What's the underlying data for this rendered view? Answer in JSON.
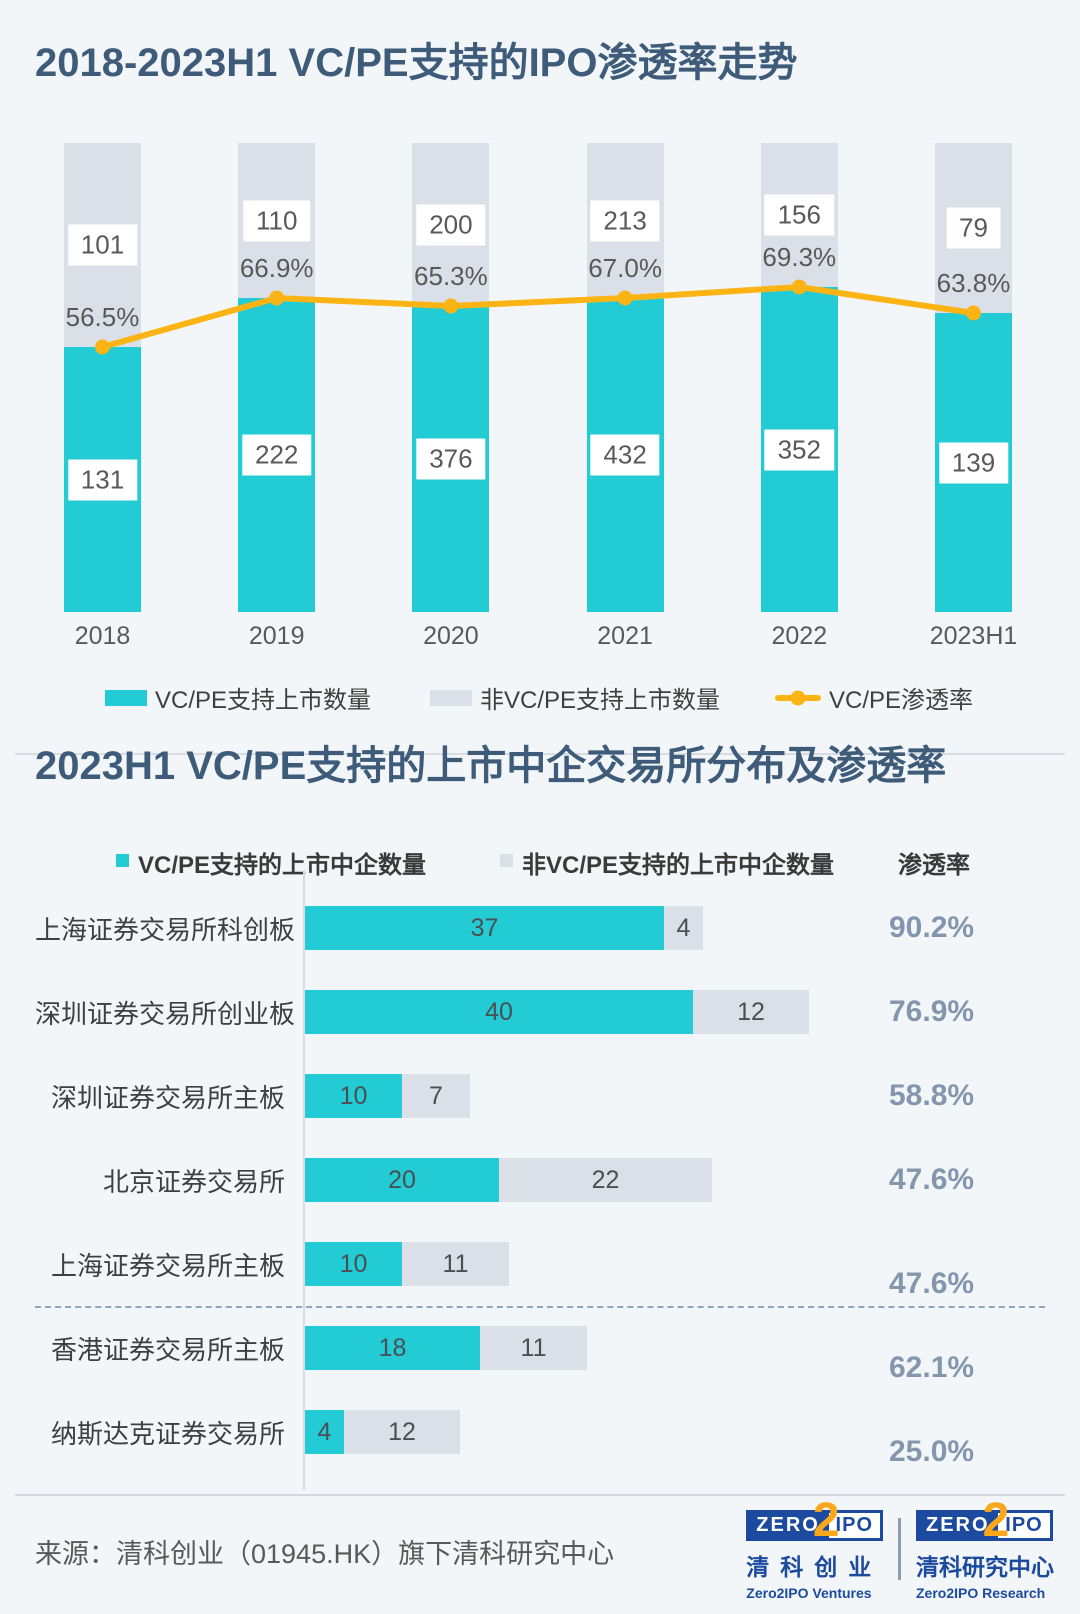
{
  "colors": {
    "background": "#f2f6f9",
    "teal": "#23cbd4",
    "gray_bar": "#dbdfe7",
    "line_yellow": "#fcb414",
    "title": "#3e5c7a",
    "rate_text": "#8496ad",
    "logo_blue": "#1b4a9e",
    "logo_yellow": "#f9a81b"
  },
  "chart_data": [
    {
      "type": "bar",
      "subtype": "stacked-100pct-columns-with-line",
      "title": "2018-2023H1 VC/PE支持的IPO渗透率走势",
      "categories": [
        "2018",
        "2019",
        "2020",
        "2021",
        "2022",
        "2023H1"
      ],
      "series": [
        {
          "name": "VC/PE支持上市数量",
          "type": "bar",
          "color": "#23cbd4",
          "values": [
            131,
            222,
            376,
            432,
            352,
            139
          ]
        },
        {
          "name": "非VC/PE支持上市数量",
          "type": "bar",
          "color": "#dbdfe7",
          "values": [
            101,
            110,
            200,
            213,
            156,
            79
          ]
        },
        {
          "name": "VC/PE渗透率",
          "type": "line",
          "color": "#fcb414",
          "values_pct": [
            56.5,
            66.9,
            65.3,
            67.0,
            69.3,
            63.8
          ],
          "labels": [
            "56.5%",
            "66.9%",
            "65.3%",
            "67.0%",
            "69.3%",
            "63.8%"
          ]
        }
      ],
      "legend": [
        {
          "label": "VC/PE支持上市数量",
          "kind": "swatch",
          "color": "#23cbd4"
        },
        {
          "label": "非VC/PE支持上市数量",
          "kind": "swatch",
          "color": "#dbdfe7"
        },
        {
          "label": "VC/PE渗透率",
          "kind": "line",
          "color": "#fcb414"
        }
      ],
      "legend_position": "bottom",
      "grid": false
    },
    {
      "type": "bar",
      "subtype": "horizontal-stacked",
      "title": "2023H1 VC/PE支持的上市中企交易所分布及渗透率",
      "legend": [
        {
          "label": "VC/PE支持的上市中企数量",
          "kind": "swatch",
          "color": "#23cbd4"
        },
        {
          "label": "非VC/PE支持的上市中企数量",
          "kind": "swatch",
          "color": "#dbdfe7"
        },
        {
          "label": "渗透率",
          "kind": "text"
        }
      ],
      "rows": [
        {
          "label": "上海证券交易所科创板",
          "vcpe_backed": 37,
          "non_vcpe": 4,
          "rate": "90.2%"
        },
        {
          "label": "深圳证券交易所创业板",
          "vcpe_backed": 40,
          "non_vcpe": 12,
          "rate": "76.9%"
        },
        {
          "label": "深圳证券交易所主板",
          "vcpe_backed": 10,
          "non_vcpe": 7,
          "rate": "58.8%"
        },
        {
          "label": "北京证券交易所",
          "vcpe_backed": 20,
          "non_vcpe": 22,
          "rate": "47.6%"
        },
        {
          "label": "上海证券交易所主板",
          "vcpe_backed": 10,
          "non_vcpe": 11,
          "rate": "47.6%"
        },
        {
          "label": "香港证券交易所主板",
          "vcpe_backed": 18,
          "non_vcpe": 11,
          "rate": "62.1%"
        },
        {
          "label": "纳斯达克证券交易所",
          "vcpe_backed": 4,
          "non_vcpe": 12,
          "rate": "25.0%"
        }
      ],
      "divider_after_row": 5,
      "grid": false
    }
  ],
  "footer": {
    "source": "来源：清科创业（01945.HK）旗下清科研究中心",
    "logos": [
      {
        "zero": "ZERO",
        "two": "2",
        "ipo": "IPO",
        "cn": "清科创业",
        "en": "Zero2IPO Ventures"
      },
      {
        "zero": "ZERO",
        "two": "2",
        "ipo": "IPO",
        "cn": "清科研究中心",
        "en": "Zero2IPO Research"
      }
    ]
  }
}
